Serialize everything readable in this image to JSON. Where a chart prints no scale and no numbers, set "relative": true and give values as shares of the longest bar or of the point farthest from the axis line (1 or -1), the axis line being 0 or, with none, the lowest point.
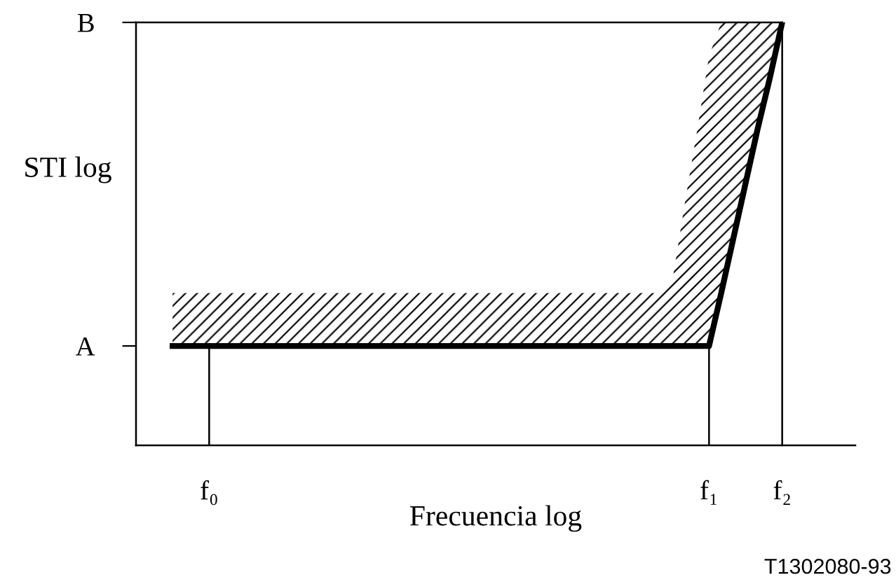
{
  "chart_data": {
    "type": "line",
    "relative": true,
    "xlabel": "Frecuencia log",
    "ylabel": "STI log",
    "annotations": [
      "A",
      "B",
      "T1302080-93"
    ],
    "categories": [
      null,
      null,
      null,
      "f₀",
      null,
      null,
      null,
      null,
      null,
      null,
      null,
      null,
      null,
      null,
      null,
      null,
      null,
      null,
      null,
      null,
      null,
      null,
      null,
      null,
      null,
      null,
      null,
      null,
      null,
      null,
      null,
      null,
      null,
      null,
      null,
      null,
      null,
      null,
      null,
      null,
      null,
      null,
      null,
      null,
      "f₁",
      null,
      null,
      null,
      null,
      null,
      "f₂"
    ],
    "series": [
      {
        "color": "#000000",
        "values": [
          0.235,
          0.235,
          0.235,
          0.235,
          0.235,
          0.235,
          0.235,
          0.235,
          0.235,
          0.235,
          0.235,
          0.235,
          0.235,
          0.235,
          0.235,
          0.235,
          0.235,
          0.235,
          0.235,
          0.235,
          0.235,
          0.235,
          0.235,
          0.235,
          0.235,
          0.235,
          0.235,
          0.235,
          0.235,
          0.235,
          0.235,
          0.235,
          0.235,
          0.235,
          0.235,
          0.235,
          0.235,
          0.235,
          0.235,
          0.235,
          0.235,
          0.235,
          0.235,
          0.235,
          0.235,
          0.36,
          0.49,
          0.62,
          0.75,
          0.87,
          1
        ],
        "lower": [
          0.235,
          0.235,
          0.235,
          0.235,
          0.235,
          0.235,
          0.235,
          0.235,
          0.235,
          0.235,
          0.235,
          0.235,
          0.235,
          0.235,
          0.235,
          0.235,
          0.235,
          0.235,
          0.235,
          0.235,
          0.235,
          0.235,
          0.235,
          0.235,
          0.235,
          0.235,
          0.235,
          0.235,
          0.235,
          0.235,
          0.235,
          0.235,
          0.235,
          0.235,
          0.235,
          0.235,
          0.235,
          0.235,
          0.235,
          0.235,
          0.235,
          0.235,
          0.235,
          0.235,
          0.235,
          0.36,
          0.49,
          0.62,
          0.75,
          0.87,
          1
        ],
        "upper": [
          0.36,
          0.36,
          0.36,
          0.36,
          0.36,
          0.36,
          0.36,
          0.36,
          0.36,
          0.36,
          0.36,
          0.36,
          0.36,
          0.36,
          0.36,
          0.36,
          0.36,
          0.36,
          0.36,
          0.36,
          0.36,
          0.36,
          0.36,
          0.36,
          0.36,
          0.36,
          0.36,
          0.36,
          0.36,
          0.36,
          0.36,
          0.36,
          0.36,
          0.36,
          0.36,
          0.36,
          0.36,
          0.36,
          0.36,
          0.36,
          0.36,
          0.39,
          0.57,
          0.74,
          0.92,
          1,
          1,
          1,
          1,
          1,
          1
        ]
      }
    ],
    "ref_lines": [
      {
        "axis": "x",
        "value": "f₀"
      },
      {
        "axis": "x",
        "value": "f₁"
      }
    ],
    "grid": false,
    "legend": false,
    "marker": "none",
    "line_style": "solid"
  }
}
